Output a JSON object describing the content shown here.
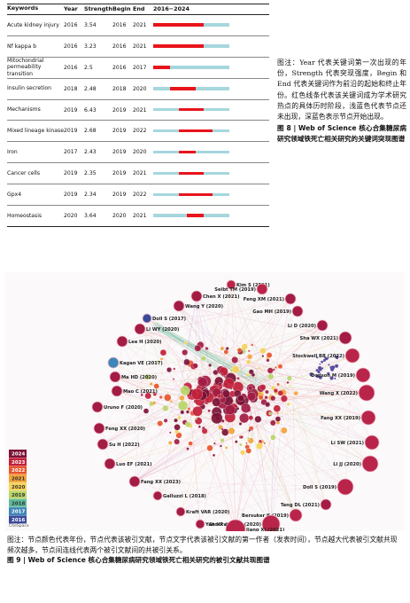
{
  "burst_table": {
    "headers": [
      "Keywords",
      "Year",
      "Strength",
      "Begin",
      "End",
      "2016−2024"
    ],
    "range": [
      2016,
      2024
    ],
    "rows": [
      {
        "keyword": "Acute kidney injury",
        "year": "2016",
        "strength": "3.54",
        "begin": "2016",
        "end": "2021"
      },
      {
        "keyword": "Nf kappa b",
        "year": "2016",
        "strength": "3.23",
        "begin": "2016",
        "end": "2021"
      },
      {
        "keyword": "Mitochondrial permeability transition",
        "year": "2016",
        "strength": "2.5",
        "begin": "2016",
        "end": "2017"
      },
      {
        "keyword": "Insulin secretion",
        "year": "2018",
        "strength": "2.48",
        "begin": "2018",
        "end": "2020"
      },
      {
        "keyword": "Mechanisms",
        "year": "2019",
        "strength": "6.43",
        "begin": "2019",
        "end": "2021"
      },
      {
        "keyword": "Mixed lineage kinase",
        "year": "2019",
        "strength": "2.68",
        "begin": "2019",
        "end": "2022"
      },
      {
        "keyword": "Iron",
        "year": "2017",
        "strength": "2.43",
        "year_note": "",
        "begin": "2019",
        "end": "2020"
      },
      {
        "keyword": "Cancer cells",
        "year": "2019",
        "strength": "2.35",
        "begin": "2019",
        "end": "2021"
      },
      {
        "keyword": "Gpx4",
        "year": "2019",
        "strength": "2.34",
        "begin": "2019",
        "end": "2022"
      },
      {
        "keyword": "Homeostasis",
        "year": "2020",
        "strength": "3.64",
        "begin": "2020",
        "end": "2021"
      }
    ],
    "colors": {
      "active": "#e8141c",
      "inactive": "#a6d7dd"
    }
  },
  "burst_caption": {
    "note": "图注：Year 代表关键词第一次出现的年份，Strength 代表突现强度，Begin 和 End 代表关键词作为前沿的起始和终止年份。红色线条代表该关键词成为学术研究热点的具体历时阶段，浅蓝色代表节点还未出现，深蓝色表示节点开始出现。",
    "figure": "图 8 | Web of Science 核心合集糖尿病研究领域铁死亡相关研究的关键词突现图谱"
  },
  "network": {
    "legend_years": [
      "2024",
      "2023",
      "2022",
      "2021",
      "2020",
      "2019",
      "2018",
      "2017",
      "2016"
    ],
    "legend_colors": [
      "#7b1236",
      "#c2203a",
      "#e8552c",
      "#f3a43a",
      "#f6d35a",
      "#b9d66a",
      "#5ebc9c",
      "#3f86b8",
      "#3a4a9a"
    ],
    "labels": [
      {
        "text": "Kim S (2021)",
        "color": "#b9254a"
      },
      {
        "text": "Seibt TM (2019)",
        "color": "#b9254a"
      },
      {
        "text": "Chen X (2021)",
        "color": "#a31c44"
      },
      {
        "text": "Wang Y (2020)",
        "color": "#a31c44"
      },
      {
        "text": "Feng XM (2021)",
        "color": "#a31c44"
      },
      {
        "text": "Doll S (2017)",
        "color": "#3a4a9a"
      },
      {
        "text": "Gao MH (2019)",
        "color": "#a31c44"
      },
      {
        "text": "Li WY (2020)",
        "color": "#a31c44"
      },
      {
        "text": "Li D (2020)",
        "color": "#a31c44"
      },
      {
        "text": "Lee H (2020)",
        "color": "#a31c44"
      },
      {
        "text": "Sha WX (2021)",
        "color": "#a31c44"
      },
      {
        "text": "Stockwell BR (2022)",
        "color": "#b9254a"
      },
      {
        "text": "Kagan VE (2017)",
        "color": "#3f86b8"
      },
      {
        "text": "Ma HD (2020)",
        "color": "#a31c44"
      },
      {
        "text": "Dodson M (2019)",
        "color": "#b9254a"
      },
      {
        "text": "Mao C (2021)",
        "color": "#a31c44"
      },
      {
        "text": "Wang X (2022)",
        "color": "#b9254a"
      },
      {
        "text": "Uruno F (2020)",
        "color": "#a31c44"
      },
      {
        "text": "Fang XX (2019)",
        "color": "#b9254a"
      },
      {
        "text": "Feng XX (2020)",
        "color": "#a31c44"
      },
      {
        "text": "Li SW (2021)",
        "color": "#b9254a"
      },
      {
        "text": "Su H (2022)",
        "color": "#a31c44"
      },
      {
        "text": "Li JJ (2020)",
        "color": "#b9254a"
      },
      {
        "text": "Luo EF (2021)",
        "color": "#a31c44"
      },
      {
        "text": "Fang XX (2023)",
        "color": "#a31c44"
      },
      {
        "text": "Doll S (2019)",
        "color": "#b9254a"
      },
      {
        "text": "Galluzzi L (2018)",
        "color": "#a31c44"
      },
      {
        "text": "Tang DL (2021)",
        "color": "#a31c44"
      },
      {
        "text": "Kraft VAR (2020)",
        "color": "#a31c44"
      },
      {
        "text": "Bersuker K (2019)",
        "color": "#b9254a"
      },
      {
        "text": "Yan HF (2021)",
        "color": "#a31c44"
      },
      {
        "text": "Stockwell BR (2020)",
        "color": "#b9254a"
      },
      {
        "text": "Jiang XJ (2021)",
        "color": "#b9254a"
      }
    ]
  },
  "network_caption": {
    "note": "图注：节点颜色代表年份，节点代表该被引文献，节点文字代表该被引文献的第一作者（发表时间），节点越大代表被引文献共现频次越多，节点间连线代表两个被引文献间的共被引关系。",
    "figure": "图 9 | Web of Science 核心合集糖尿病研究领域铁死亡相关研究的被引文献共现图谱"
  }
}
